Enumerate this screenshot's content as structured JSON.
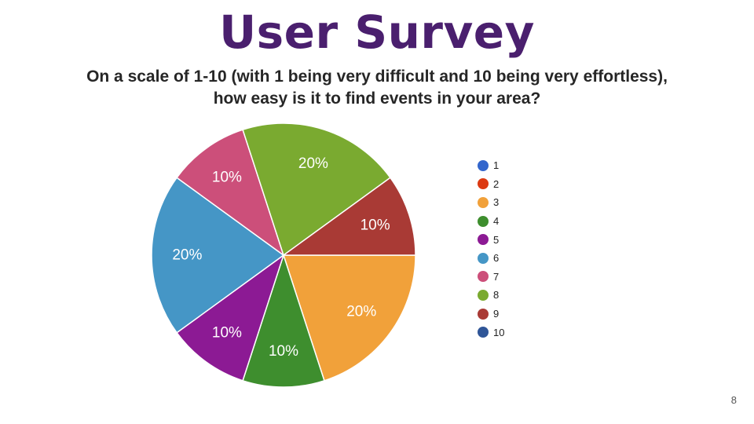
{
  "slide": {
    "title": "User Survey",
    "question_line1": "On a scale of 1-10 (with 1 being very difficult and 10 being very effortless),",
    "question_line2": "how easy is it to find events in your area?",
    "page_number": "8"
  },
  "chart_data": {
    "type": "pie",
    "title": "",
    "legend_position": "right",
    "slices": [
      {
        "label": "1",
        "value": 0,
        "percent_label": "",
        "color": "#3366cc"
      },
      {
        "label": "2",
        "value": 0,
        "percent_label": "",
        "color": "#dc3912"
      },
      {
        "label": "3",
        "value": 20,
        "percent_label": "20%",
        "color": "#f1a13a"
      },
      {
        "label": "4",
        "value": 10,
        "percent_label": "10%",
        "color": "#3e8e2e"
      },
      {
        "label": "5",
        "value": 10,
        "percent_label": "10%",
        "color": "#8c1a94"
      },
      {
        "label": "6",
        "value": 20,
        "percent_label": "20%",
        "color": "#4596c6"
      },
      {
        "label": "7",
        "value": 10,
        "percent_label": "10%",
        "color": "#cc4f7a"
      },
      {
        "label": "8",
        "value": 20,
        "percent_label": "20%",
        "color": "#7aaa30"
      },
      {
        "label": "9",
        "value": 10,
        "percent_label": "10%",
        "color": "#a93a35"
      },
      {
        "label": "10",
        "value": 0,
        "percent_label": "",
        "color": "#2f5597"
      }
    ]
  }
}
